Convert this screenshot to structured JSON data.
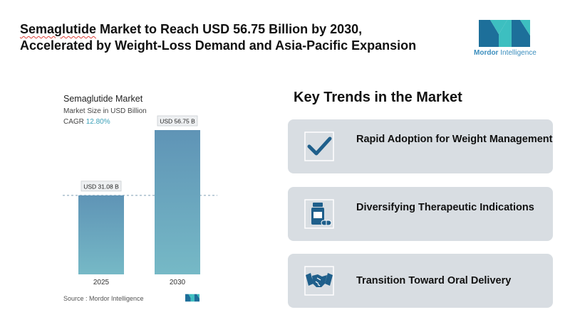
{
  "headline": {
    "line1_underlined": "Semaglutide",
    "line1_rest": " Market to Reach USD 56.75 Billion by 2030,",
    "line2": "Accelerated by Weight-Loss Demand and Asia-Pacific Expansion"
  },
  "brand": {
    "name_strong": "Mordor",
    "name_rest": " Intelligence",
    "colors": {
      "dark": "#1d6f9a",
      "teal": "#3dbfc0"
    }
  },
  "chart_data": {
    "type": "bar",
    "title": "Semaglutide Market",
    "subtitle": "Market Size in USD Billion",
    "cagr_label": "CAGR",
    "cagr_value": "12.80%",
    "categories": [
      "2025",
      "2030"
    ],
    "values": [
      31.08,
      56.75
    ],
    "value_labels": [
      "USD 31.08 B",
      "USD 56.75 B"
    ],
    "ylim": [
      0,
      60
    ],
    "reference_line": "dashed at 2025 value",
    "grid": false,
    "legend": "none",
    "colors": {
      "bar_top": "#5f94b6",
      "bar_bottom": "#76b9c6",
      "label_bg": "#eef0f2"
    },
    "source": "Source : Mordor Intelligence"
  },
  "trends": {
    "heading": "Key Trends in the Market",
    "items": [
      {
        "label": "Rapid Adoption for Weight Management",
        "icon": "checkmark-icon"
      },
      {
        "label": "Diversifying Therapeutic Indications",
        "icon": "medicine-bottle-icon"
      },
      {
        "label": "Transition Toward Oral Delivery",
        "icon": "handshake-icon"
      }
    ],
    "colors": {
      "card_bg": "#d8dde2",
      "icon": "#1f5f8b"
    }
  }
}
